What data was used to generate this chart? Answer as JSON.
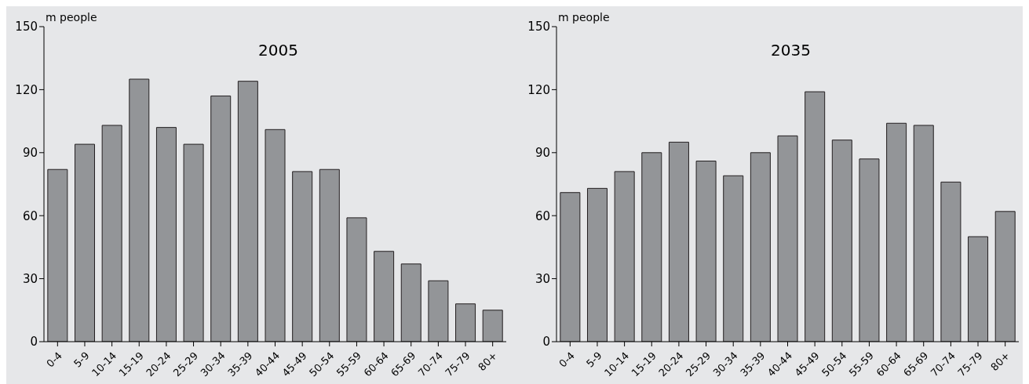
{
  "chart_data": [
    {
      "type": "bar",
      "title": "2005",
      "ylabel": "m people",
      "categories": [
        "0-4",
        "5-9",
        "10-14",
        "15-19",
        "20-24",
        "25-29",
        "30-34",
        "35-39",
        "40-44",
        "45-49",
        "50-54",
        "55-59",
        "60-64",
        "65-69",
        "70-74",
        "75-79",
        "80+"
      ],
      "values": [
        82,
        94,
        103,
        125,
        102,
        94,
        117,
        124,
        101,
        81,
        82,
        59,
        43,
        37,
        29,
        18,
        15
      ],
      "color": "#939598",
      "ylim": [
        0,
        150
      ],
      "yticks": [
        0,
        30,
        60,
        90,
        120,
        150
      ],
      "grid": false,
      "legend": false
    },
    {
      "type": "bar",
      "title": "2035",
      "ylabel": "m people",
      "categories": [
        "0-4",
        "5-9",
        "10-14",
        "15-19",
        "20-24",
        "25-29",
        "30-34",
        "35-39",
        "40-44",
        "45-49",
        "50-54",
        "55-59",
        "60-64",
        "65-69",
        "70-74",
        "75-79",
        "80+"
      ],
      "values": [
        71,
        73,
        81,
        90,
        95,
        86,
        79,
        90,
        98,
        119,
        96,
        87,
        104,
        103,
        76,
        50,
        62
      ],
      "color": "#939598",
      "ylim": [
        0,
        150
      ],
      "yticks": [
        0,
        30,
        60,
        90,
        120,
        150
      ],
      "grid": false,
      "legend": false
    }
  ]
}
